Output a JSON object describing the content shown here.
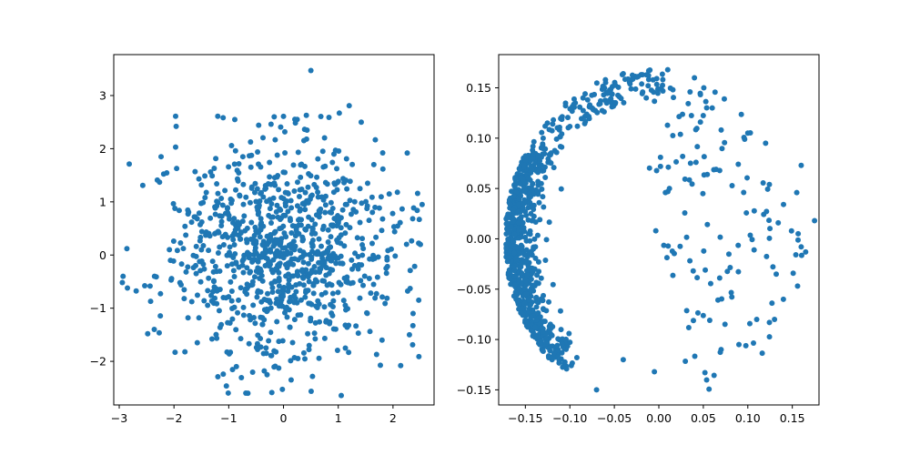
{
  "chart_data": [
    {
      "type": "scatter",
      "title": "",
      "xlabel": "",
      "ylabel": "",
      "xlim": [
        -3.1,
        2.75
      ],
      "ylim": [
        -2.82,
        3.77
      ],
      "xticks": [
        -3,
        -2,
        -1,
        0,
        1,
        2
      ],
      "yticks": [
        -2,
        -1,
        0,
        1,
        2,
        3
      ],
      "xtick_labels": [
        "−3",
        "−2",
        "−1",
        "0",
        "1",
        "2"
      ],
      "ytick_labels": [
        "−2",
        "−1",
        "0",
        "1",
        "2",
        "3"
      ],
      "grid": false,
      "series": [
        {
          "color": "#1f77b4",
          "marker": "circle",
          "distribution": "bivariate normal, mean (0, 0), std 1",
          "count": 1000,
          "points": [
            [
              0.5,
              3.47
            ],
            [
              1.2,
              2.81
            ],
            [
              -0.17,
              2.6
            ],
            [
              -1.2,
              2.61
            ],
            [
              -1.97,
              2.61
            ],
            [
              -1.96,
              2.42
            ],
            [
              -1.97,
              2.03
            ],
            [
              0.43,
              2.35
            ],
            [
              1.42,
              2.5
            ],
            [
              2.26,
              1.92
            ],
            [
              -2.57,
              1.31
            ],
            [
              -2.86,
              0.12
            ],
            [
              -2.93,
              -0.4
            ],
            [
              -2.85,
              -0.62
            ],
            [
              -2.36,
              -1.4
            ],
            [
              -2.48,
              -1.48
            ],
            [
              -1.98,
              -1.83
            ],
            [
              -1.8,
              -1.82
            ],
            [
              -0.97,
              -1.83
            ],
            [
              -1.1,
              -2.24
            ],
            [
              -0.65,
              -2.6
            ],
            [
              -0.3,
              -2.25
            ],
            [
              0.14,
              -2.35
            ],
            [
              0.2,
              -1.93
            ],
            [
              1.13,
              -1.75
            ],
            [
              1.7,
              -1.87
            ],
            [
              1.8,
              -1.6
            ],
            [
              2.14,
              -2.08
            ],
            [
              2.3,
              -1.5
            ],
            [
              2.47,
              -0.85
            ],
            [
              2.5,
              0.2
            ],
            [
              2.48,
              0.67
            ],
            [
              2.08,
              1.18
            ],
            [
              1.65,
              1.7
            ],
            [
              0.95,
              1.97
            ],
            [
              0.25,
              2.55
            ]
          ]
        }
      ]
    },
    {
      "type": "scatter",
      "title": "",
      "xlabel": "",
      "ylabel": "",
      "xlim": [
        -0.18,
        0.18
      ],
      "ylim": [
        -0.165,
        0.183
      ],
      "xticks": [
        -0.15,
        -0.1,
        -0.05,
        0.0,
        0.05,
        0.1,
        0.15
      ],
      "yticks": [
        -0.15,
        -0.1,
        -0.05,
        0.0,
        0.05,
        0.1,
        0.15
      ],
      "xtick_labels": [
        "−0.15",
        "−0.10",
        "−0.05",
        "0.00",
        "0.05",
        "0.10",
        "0.15"
      ],
      "ytick_labels": [
        "−0.15",
        "−0.10",
        "−0.05",
        "0.00",
        "0.05",
        "0.10",
        "0.15"
      ],
      "grid": false,
      "series": [
        {
          "color": "#1f77b4",
          "marker": "circle",
          "count": 1000,
          "distribution": "dense crescent along the left edge (x ≈ −0.17 to −0.11), sparse spread toward the upper arc and right side",
          "points": [
            [
              0.01,
              0.168
            ],
            [
              -0.02,
              0.163
            ],
            [
              -0.04,
              0.164
            ],
            [
              -0.06,
              0.158
            ],
            [
              -0.11,
              0.12
            ],
            [
              -0.08,
              0.138
            ],
            [
              0.04,
              0.16
            ],
            [
              0.06,
              0.13
            ],
            [
              0.1,
              0.105
            ],
            [
              0.12,
              0.095
            ],
            [
              0.16,
              0.073
            ],
            [
              0.155,
              0.046
            ],
            [
              0.165,
              -0.013
            ],
            [
              0.16,
              -0.008
            ],
            [
              0.175,
              0.018
            ],
            [
              0.14,
              -0.06
            ],
            [
              0.13,
              -0.08
            ],
            [
              0.11,
              -0.08
            ],
            [
              0.09,
              -0.105
            ],
            [
              0.07,
              -0.11
            ],
            [
              -0.005,
              -0.132
            ],
            [
              -0.07,
              -0.15
            ],
            [
              -0.04,
              -0.12
            ],
            [
              -0.12,
              -0.12
            ],
            [
              -0.165,
              -0.04
            ],
            [
              -0.168,
              0.0
            ],
            [
              -0.165,
              0.03
            ],
            [
              -0.15,
              0.06
            ],
            [
              -0.14,
              0.08
            ],
            [
              -0.13,
              0.1
            ]
          ]
        }
      ]
    }
  ]
}
